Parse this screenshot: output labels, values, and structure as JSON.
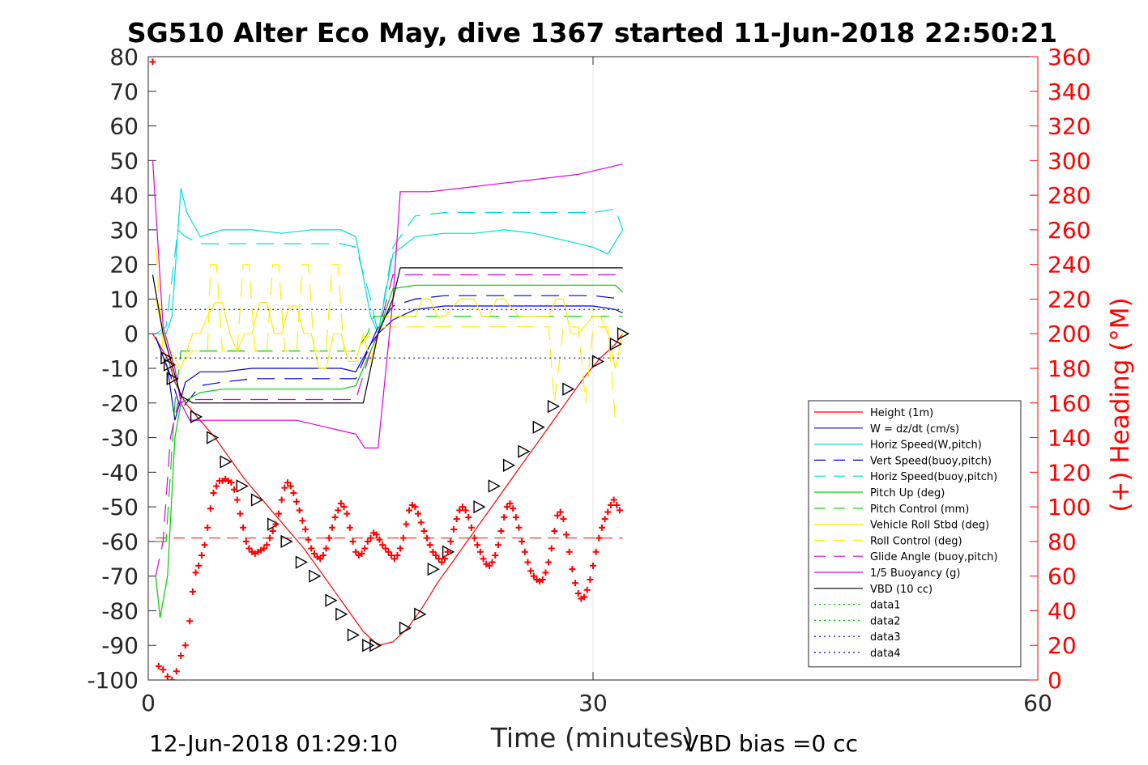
{
  "chart_data": {
    "type": "line",
    "title": "SG510 Alter Eco May, dive 1367 started 11-Jun-2018 22:50:21",
    "xlabel": "Time (minutes)",
    "ylabel": "",
    "ylabel_right": "(+) Heading (°M)",
    "xlim": [
      0,
      60
    ],
    "ylim": [
      -100,
      80
    ],
    "ylim_right": [
      0,
      360
    ],
    "x_ticks": [
      "0",
      "30",
      "60"
    ],
    "y_ticks": [
      "80",
      "70",
      "60",
      "50",
      "40",
      "30",
      "20",
      "10",
      "0",
      "-10",
      "-20",
      "-30",
      "-40",
      "-50",
      "-60",
      "-70",
      "-80",
      "-90",
      "-100"
    ],
    "y_ticks_right": [
      "360",
      "340",
      "320",
      "300",
      "280",
      "260",
      "240",
      "220",
      "200",
      "180",
      "160",
      "140",
      "120",
      "100",
      "80",
      "60",
      "40",
      "20",
      "0"
    ],
    "grid": "vertical at x ticks",
    "legend_position": "bottom-right",
    "footer_left": "12-Jun-2018 01:29:10",
    "footer_right": "VBD bias =0 cc",
    "series": [
      {
        "name": "Height (1m)",
        "color": "#ff0000",
        "style": "solid",
        "x": [
          0.3,
          1,
          1.4,
          1.8,
          2.5,
          3.5,
          4.5,
          5.5,
          6.5,
          7.5,
          8.5,
          9.5,
          10.5,
          11.5,
          12.5,
          13.5,
          14.5,
          15.5,
          16.5,
          17.5,
          18.5,
          19.5,
          20.5,
          21.5,
          22.5,
          23.5,
          24.5,
          25.5,
          26.5,
          27.5,
          28.5,
          29.5,
          30.5,
          31.5,
          32
        ],
        "y": [
          0,
          -5,
          -8,
          -14,
          -20,
          -25,
          -30,
          -36,
          -42,
          -47,
          -52,
          -57,
          -62,
          -68,
          -74,
          -80,
          -86,
          -90,
          -89,
          -85,
          -79,
          -72,
          -66,
          -60,
          -54,
          -48,
          -42,
          -36,
          -30,
          -24,
          -18,
          -12,
          -7,
          -3,
          0
        ]
      },
      {
        "name": "W = dz/dt (cm/s)",
        "color": "#0000cc",
        "style": "solid",
        "x": [
          0.5,
          1.3,
          1.8,
          2.5,
          3.5,
          5,
          7,
          9,
          11,
          13,
          14,
          15,
          15.5,
          16.5,
          18,
          20,
          22,
          24,
          26,
          28,
          30,
          31.5,
          32
        ],
        "y": [
          -1,
          -10,
          -25,
          -14,
          -11,
          -11,
          -10,
          -10,
          -10,
          -10,
          -11,
          -3,
          0,
          4,
          7,
          8,
          8,
          8,
          8,
          8,
          8,
          7,
          6
        ]
      },
      {
        "name": "Horiz Speed(W,pitch)",
        "color": "#00dddd",
        "style": "solid",
        "x": [
          0.5,
          1.2,
          1.6,
          2.2,
          2.6,
          3.5,
          5,
          7,
          9,
          11,
          13,
          14,
          15,
          15.5,
          16.5,
          18,
          20,
          22,
          24,
          26,
          28,
          30,
          31,
          32
        ],
        "y": [
          0,
          0,
          5,
          42,
          35,
          28,
          30,
          30,
          29,
          30,
          30,
          28,
          5,
          0,
          23,
          28,
          29,
          29,
          30,
          29,
          27,
          25,
          23,
          30
        ]
      },
      {
        "name": "Vert Speed(buoy,pitch)",
        "color": "#0000cc",
        "style": "dashed",
        "x": [
          0.5,
          1.5,
          2.2,
          3.5,
          5,
          7,
          9,
          11,
          13,
          14,
          15,
          15.5,
          16.5,
          18,
          20,
          22,
          24,
          26,
          28,
          30,
          32
        ],
        "y": [
          -1,
          -12,
          -22,
          -15,
          -14,
          -13,
          -13,
          -13,
          -13,
          -13,
          -3,
          2,
          8,
          10,
          11,
          11,
          11,
          11,
          11,
          11,
          10
        ]
      },
      {
        "name": "Horiz Speed(buoy,pitch)",
        "color": "#00dddd",
        "style": "dashed",
        "x": [
          0.5,
          1.2,
          2,
          2.5,
          3.5,
          5,
          7,
          9,
          11,
          13,
          14,
          15,
          15.5,
          16.5,
          18,
          20,
          22,
          24,
          26,
          28,
          30,
          31.5,
          32
        ],
        "y": [
          0,
          2,
          30,
          28,
          26,
          26,
          26,
          26,
          26,
          26,
          25,
          10,
          0,
          25,
          34,
          35,
          35,
          35,
          35,
          35,
          35,
          36,
          30
        ]
      },
      {
        "name": "Pitch Up (deg)",
        "color": "#00cc00",
        "style": "solid",
        "x": [
          0.5,
          0.8,
          1.3,
          1.8,
          2.2,
          3.5,
          5,
          7,
          9,
          11,
          13,
          14,
          15,
          15.5,
          16.5,
          18,
          20,
          22,
          24,
          26,
          28,
          30,
          31.5,
          32
        ],
        "y": [
          -70,
          -82,
          -70,
          -30,
          -20,
          -17,
          -16,
          -16,
          -16,
          -16,
          -16,
          -15,
          -5,
          0,
          13,
          14,
          14,
          14,
          14,
          14,
          14,
          14,
          14,
          12
        ]
      },
      {
        "name": "Pitch Control (mm)",
        "color": "#00cc00",
        "style": "dashed",
        "x": [
          0.5,
          1.2,
          1.8,
          2.2,
          3,
          5,
          7,
          9,
          11,
          13,
          14,
          14.8,
          15.2,
          16,
          18,
          20,
          22,
          24,
          26,
          28,
          30,
          32
        ],
        "y": [
          -60,
          -60,
          -20,
          -5,
          -5,
          -5,
          -5,
          -5,
          -5,
          -5,
          -5,
          0,
          5,
          5,
          5,
          5,
          5,
          5,
          5,
          5,
          5,
          5
        ]
      },
      {
        "name": "Vehicle Roll Stbd (deg)",
        "color": "#ffee00",
        "style": "solid",
        "x": [
          0.5,
          1,
          1.5,
          2.2,
          3,
          3.5,
          4,
          4.5,
          5,
          5.5,
          6,
          6.5,
          7,
          7.5,
          8,
          8.5,
          9,
          9.5,
          10,
          10.5,
          11,
          11.5,
          12,
          12.5,
          13,
          13.5,
          14,
          14.5,
          15,
          15.5,
          16,
          17,
          18,
          18.5,
          19,
          19.5,
          20,
          21,
          22,
          22.5,
          23,
          23.5,
          24,
          25,
          26,
          27,
          27.5,
          28,
          28.5,
          29,
          30,
          30.5,
          31,
          31.5,
          32
        ],
        "y": [
          10,
          0,
          -5,
          -10,
          0,
          0,
          5,
          9,
          9,
          0,
          -5,
          0,
          0,
          9,
          9,
          0,
          0,
          8,
          8,
          0,
          0,
          -10,
          -10,
          0,
          0,
          -8,
          -8,
          0,
          -8,
          0,
          5,
          5,
          5,
          10,
          10,
          5,
          5,
          10,
          10,
          5,
          5,
          10,
          10,
          5,
          5,
          5,
          10,
          10,
          0,
          0,
          5,
          5,
          0,
          -10,
          0
        ]
      },
      {
        "name": "Roll Control (deg)",
        "color": "#ffee00",
        "style": "dashed",
        "x": [
          0.5,
          1,
          2,
          3,
          4,
          4.2,
          4.6,
          5,
          6,
          6.4,
          6.8,
          7.2,
          8,
          8.4,
          8.8,
          9.2,
          10,
          10.4,
          10.8,
          11.2,
          12,
          12.4,
          12.8,
          13.2,
          14,
          15,
          16,
          18,
          20,
          22,
          24,
          25,
          26,
          27,
          27.4,
          28,
          29,
          29.5,
          30,
          31,
          31.5,
          32
        ],
        "y": [
          25,
          -5,
          -10,
          -5,
          -5,
          20,
          20,
          -5,
          -5,
          20,
          20,
          -5,
          -5,
          20,
          20,
          -5,
          -5,
          20,
          20,
          -5,
          -5,
          20,
          20,
          -5,
          -5,
          0,
          2,
          2,
          2,
          2,
          2,
          2,
          2,
          2,
          -20,
          2,
          2,
          -20,
          2,
          2,
          -25,
          -25
        ]
      },
      {
        "name": "Glide Angle (buoy,pitch)",
        "color": "#dd00dd",
        "style": "dashed",
        "x": [
          0.5,
          1,
          1.5,
          2,
          3,
          5,
          7,
          9,
          11,
          13,
          14,
          15,
          15.5,
          16.5,
          18,
          20,
          22,
          24,
          26,
          28,
          30,
          32
        ],
        "y": [
          -70,
          -60,
          -30,
          -20,
          -19,
          -19,
          -19,
          -19,
          -19,
          -19,
          -19,
          -5,
          0,
          17,
          17,
          17,
          17,
          17,
          17,
          17,
          17,
          17
        ]
      },
      {
        "name": "1/5 Buoyancy (g)",
        "color": "#dd00dd",
        "style": "solid",
        "x": [
          0.3,
          1,
          1.8,
          2.2,
          2.8,
          4,
          6,
          8,
          10,
          12,
          13,
          14,
          14.6,
          15.5,
          16.5,
          17,
          19,
          21,
          23,
          25,
          27,
          29,
          31,
          32
        ],
        "y": [
          50,
          2,
          -10,
          -20,
          -25,
          -25,
          -25,
          -25,
          -25,
          -27,
          -28,
          -29,
          -33,
          -33,
          10,
          41,
          41,
          42,
          43,
          44,
          45,
          46,
          48,
          49
        ]
      },
      {
        "name": "VBD (10 cc)",
        "color": "#000000",
        "style": "solid",
        "x": [
          0.3,
          1,
          1.8,
          2.2,
          3,
          5,
          7,
          9,
          11,
          13,
          14,
          14.5,
          15.5,
          16.5,
          17,
          18,
          20,
          22,
          24,
          26,
          28,
          30,
          32
        ],
        "y": [
          17,
          0,
          -12,
          -18,
          -20,
          -20,
          -20,
          -20,
          -20,
          -20,
          -20,
          -20,
          0,
          10,
          19,
          19,
          19,
          19,
          19,
          19,
          19,
          19,
          19
        ]
      },
      {
        "name": "data1",
        "color": "#00cc00",
        "style": "dotted",
        "x": [],
        "y": []
      },
      {
        "name": "data2",
        "color": "#00cc00",
        "style": "dotted",
        "x": [],
        "y": []
      },
      {
        "name": "data3",
        "color": "#0000cc",
        "style": "dotted",
        "x": [
          0.5,
          32
        ],
        "y": [
          7,
          7
        ]
      },
      {
        "name": "data4",
        "color": "#0000cc",
        "style": "dotted",
        "x": [
          0.5,
          32
        ],
        "y": [
          -7,
          -7
        ]
      }
    ],
    "height_markers": {
      "x": [
        1.2,
        1.4,
        1.6,
        3.2,
        4.3,
        5.2,
        6.3,
        7.3,
        8.4,
        9.3,
        10.3,
        11.2,
        12.3,
        13,
        13.8,
        14.8,
        15.3,
        17.3,
        18.3,
        19.2,
        20.2,
        22.3,
        23.3,
        24.3,
        25.3,
        26.3,
        27.3,
        28.3,
        30.3,
        31.5,
        32
      ],
      "y": [
        -7,
        -9,
        -13,
        -24,
        -30,
        -37,
        -44,
        -48,
        -55,
        -60,
        -66,
        -70,
        -77,
        -81,
        -87,
        -90,
        -90,
        -85,
        -81,
        -68,
        -63,
        -50,
        -44,
        -38,
        -34,
        -27,
        -21,
        -16,
        -8,
        -3,
        0
      ]
    },
    "heading_series": {
      "name": "Heading",
      "color": "#ff0000",
      "marker": "+",
      "reference_line": 82,
      "x": [
        0.3,
        0.7,
        1,
        1.3,
        1.6,
        1.9,
        2.2,
        2.5,
        2.8,
        3,
        3.2,
        3.4,
        3.6,
        3.8,
        4,
        4.2,
        4.4,
        4.6,
        4.8,
        5,
        5.2,
        5.4,
        5.6,
        5.8,
        6,
        6.2,
        6.4,
        6.6,
        6.8,
        7,
        7.2,
        7.4,
        7.6,
        7.8,
        8,
        8.2,
        8.4,
        8.6,
        8.8,
        9,
        9.2,
        9.4,
        9.6,
        9.8,
        10,
        10.2,
        10.4,
        10.6,
        10.8,
        11,
        11.2,
        11.4,
        11.6,
        11.8,
        12,
        12.2,
        12.4,
        12.6,
        12.8,
        13,
        13.2,
        13.4,
        13.6,
        13.8,
        14,
        14.2,
        14.4,
        14.6,
        14.8,
        15,
        15.2,
        15.4,
        15.6,
        15.8,
        16,
        16.2,
        16.4,
        16.6,
        16.8,
        17,
        17.2,
        17.4,
        17.6,
        17.8,
        18,
        18.2,
        18.4,
        18.6,
        18.8,
        19,
        19.2,
        19.4,
        19.6,
        19.8,
        20,
        20.2,
        20.4,
        20.6,
        20.8,
        21,
        21.2,
        21.4,
        21.6,
        21.8,
        22,
        22.2,
        22.4,
        22.6,
        22.8,
        23,
        23.2,
        23.4,
        23.6,
        23.8,
        24,
        24.2,
        24.4,
        24.6,
        24.8,
        25,
        25.2,
        25.4,
        25.6,
        25.8,
        26,
        26.2,
        26.4,
        26.6,
        26.8,
        27,
        27.2,
        27.4,
        27.6,
        27.8,
        28,
        28.2,
        28.4,
        28.6,
        28.8,
        29,
        29.2,
        29.4,
        29.6,
        29.8,
        30,
        30.2,
        30.4,
        30.6,
        30.8,
        31,
        31.2,
        31.4,
        31.6,
        31.8
      ],
      "y": [
        357,
        8,
        6,
        2,
        0,
        5,
        14,
        20,
        34,
        51,
        62,
        66,
        72,
        78,
        88,
        99,
        108,
        112,
        115,
        115,
        116,
        115,
        114,
        110,
        104,
        96,
        88,
        80,
        76,
        74,
        73,
        74,
        75,
        76,
        78,
        82,
        86,
        90,
        96,
        104,
        111,
        114,
        112,
        108,
        103,
        98,
        92,
        87,
        81,
        76,
        73,
        71,
        70,
        72,
        76,
        82,
        88,
        94,
        98,
        102,
        100,
        96,
        88,
        80,
        74,
        72,
        73,
        76,
        80,
        82,
        85,
        84,
        81,
        78,
        76,
        74,
        72,
        70,
        72,
        76,
        82,
        90,
        98,
        101,
        100,
        96,
        91,
        86,
        82,
        78,
        74,
        72,
        70,
        68,
        70,
        74,
        80,
        87,
        93,
        98,
        100,
        98,
        94,
        88,
        82,
        78,
        74,
        70,
        67,
        66,
        68,
        72,
        78,
        86,
        94,
        100,
        102,
        99,
        94,
        88,
        80,
        74,
        68,
        63,
        60,
        58,
        57,
        58,
        62,
        68,
        76,
        86,
        95,
        97,
        93,
        84,
        74,
        64,
        56,
        50,
        47,
        48,
        52,
        58,
        66,
        74,
        82,
        88,
        93,
        97,
        101,
        104,
        101,
        98
      ]
    }
  }
}
